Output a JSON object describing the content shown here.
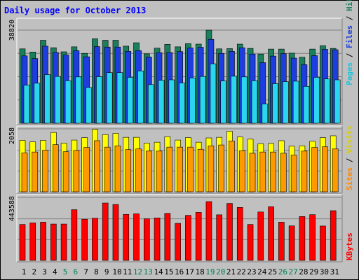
{
  "chart_data": {
    "type": "bar",
    "title": "Daily usage for October 2013",
    "categories": [
      "1",
      "2",
      "3",
      "4",
      "5",
      "6",
      "7",
      "8",
      "9",
      "10",
      "11",
      "12",
      "13",
      "14",
      "15",
      "16",
      "17",
      "18",
      "19",
      "20",
      "21",
      "22",
      "23",
      "24",
      "25",
      "26",
      "27",
      "28",
      "29",
      "30",
      "31"
    ],
    "weekend_days": [
      "5",
      "6",
      "12",
      "13",
      "19",
      "20",
      "26",
      "27"
    ],
    "panels": [
      {
        "id": "traffic",
        "ylabel_parts": [
          "Pages",
          "Files",
          "Hits"
        ],
        "y_tick_label": "38820",
        "ylim": [
          0,
          41200
        ],
        "series": [
          {
            "name": "Hits",
            "color": "#1a7f5a",
            "values": [
              32900,
              31500,
              36700,
              33400,
              31600,
              33800,
              30900,
              37400,
              36700,
              36700,
              34100,
              35600,
              30700,
              33200,
              34900,
              33800,
              35200,
              35000,
              41200,
              32900,
              33000,
              35000,
              33100,
              30600,
              32800,
              32800,
              31000,
              29200,
              32800,
              34300,
              33100
            ]
          },
          {
            "name": "Files",
            "color": "#1d3de0",
            "values": [
              29800,
              28600,
              34100,
              31300,
              30200,
              32100,
              29400,
              33900,
              33700,
              33700,
              31800,
              32100,
              29300,
              31200,
              31300,
              31700,
              33300,
              33600,
              37100,
              30900,
              31800,
              33400,
              30600,
              26800,
              29700,
              30800,
              28800,
              25900,
              29900,
              32700,
              32500
            ]
          },
          {
            "name": "Pages",
            "color": "#29d6ee",
            "values": [
              16800,
              17700,
              21500,
              20700,
              18800,
              20500,
              15800,
              20600,
              22400,
              22400,
              20300,
              23100,
              17100,
              19000,
              19200,
              17800,
              20000,
              20700,
              26300,
              18700,
              20800,
              20500,
              18800,
              8500,
              17500,
              18400,
              18600,
              16300,
              20300,
              19600,
              19200
            ]
          }
        ]
      },
      {
        "id": "visitors",
        "ylabel_parts": [
          "Sites",
          "Visits"
        ],
        "y_tick_label": "2058",
        "ylim": [
          0,
          2058
        ],
        "series": [
          {
            "name": "Visits",
            "color": "#ffff00",
            "values": [
              1680,
              1630,
              1680,
              1940,
              1590,
              1690,
              1770,
              2040,
              1870,
              1910,
              1780,
              1780,
              1590,
              1620,
              1800,
              1690,
              1770,
              1620,
              1760,
              1780,
              1980,
              1790,
              1720,
              1570,
              1580,
              1670,
              1490,
              1500,
              1650,
              1770,
              1830
            ]
          },
          {
            "name": "Sites",
            "color": "#ff9900",
            "values": [
              1270,
              1300,
              1360,
              1540,
              1310,
              1350,
              1450,
              1670,
              1460,
              1500,
              1380,
              1400,
              1330,
              1330,
              1460,
              1460,
              1460,
              1390,
              1500,
              1530,
              1660,
              1340,
              1260,
              1300,
              1300,
              1260,
              1200,
              1330,
              1450,
              1470,
              1400
            ]
          }
        ]
      },
      {
        "id": "volume",
        "ylabel_parts": [
          "KBytes"
        ],
        "y_tick_label": "443588",
        "ylim": [
          0,
          443588
        ],
        "series": [
          {
            "name": "KBytes",
            "color": "#ff0000",
            "values": [
              253000,
              264000,
              269000,
              256000,
              256000,
              357000,
              290000,
              297000,
              404000,
              394000,
              324000,
              328000,
              293000,
              299000,
              331000,
              261000,
              317000,
              338000,
              414000,
              321000,
              401000,
              373000,
              253000,
              341000,
              378000,
              269000,
              243000,
              309000,
              322000,
              242000,
              350000
            ]
          }
        ]
      }
    ],
    "grid": true,
    "legend": "right-side rotated axis labels"
  }
}
